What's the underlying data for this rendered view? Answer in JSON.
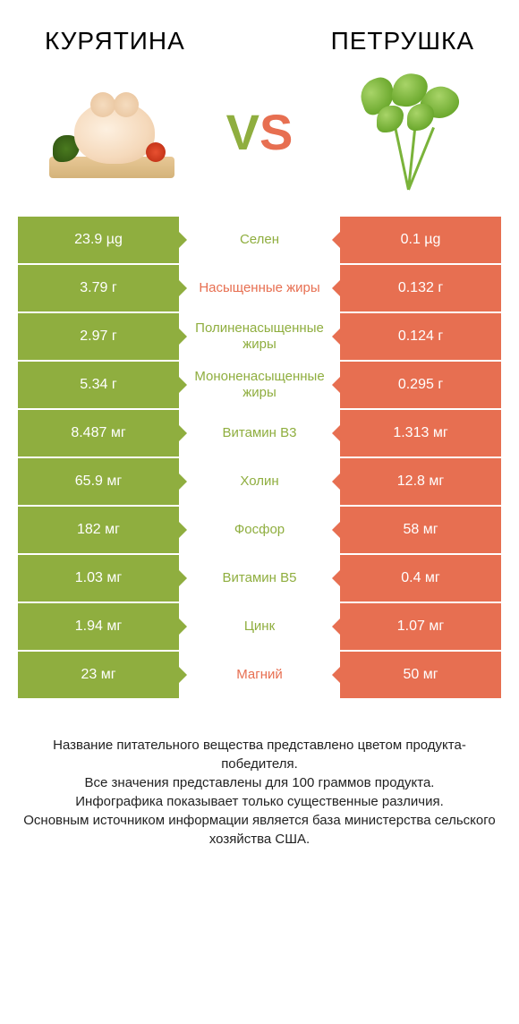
{
  "colors": {
    "left": "#8fae3f",
    "right": "#e76f51",
    "text_dark": "#222222"
  },
  "header": {
    "left_title": "КУРЯТИНА",
    "right_title": "ПЕТРУШКА",
    "vs": "VS"
  },
  "rows": [
    {
      "left": "23.9 µg",
      "mid": "Селен",
      "right": "0.1 µg",
      "winner": "left"
    },
    {
      "left": "3.79 г",
      "mid": "Насыщенные жиры",
      "right": "0.132 г",
      "winner": "right"
    },
    {
      "left": "2.97 г",
      "mid": "Полиненасыщенные жиры",
      "right": "0.124 г",
      "winner": "left"
    },
    {
      "left": "5.34 г",
      "mid": "Мононенасыщенные жиры",
      "right": "0.295 г",
      "winner": "left"
    },
    {
      "left": "8.487 мг",
      "mid": "Витамин B3",
      "right": "1.313 мг",
      "winner": "left"
    },
    {
      "left": "65.9 мг",
      "mid": "Холин",
      "right": "12.8 мг",
      "winner": "left"
    },
    {
      "left": "182 мг",
      "mid": "Фосфор",
      "right": "58 мг",
      "winner": "left"
    },
    {
      "left": "1.03 мг",
      "mid": "Витамин B5",
      "right": "0.4 мг",
      "winner": "left"
    },
    {
      "left": "1.94 мг",
      "mid": "Цинк",
      "right": "1.07 мг",
      "winner": "left"
    },
    {
      "left": "23 мг",
      "mid": "Магний",
      "right": "50 мг",
      "winner": "right"
    }
  ],
  "footer": {
    "line1": "Название питательного вещества представлено цветом продукта-победителя.",
    "line2": "Все значения представлены для 100 граммов продукта.",
    "line3": "Инфографика показывает только существенные различия.",
    "line4": "Основным источником информации является база министерства сельского хозяйства США."
  }
}
